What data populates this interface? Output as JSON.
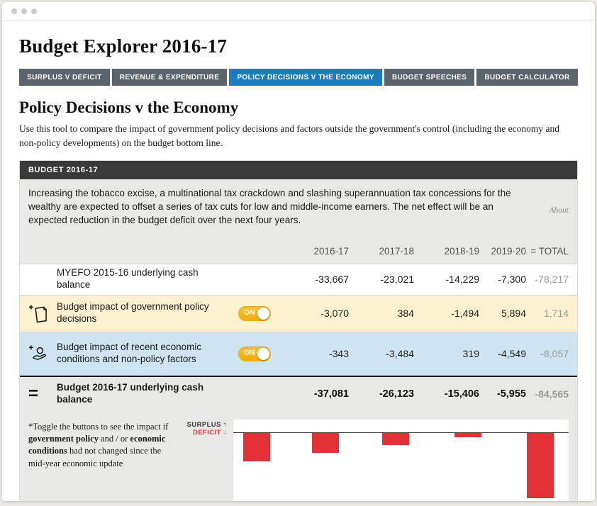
{
  "header": {
    "title": "Budget Explorer 2016-17"
  },
  "tabs": [
    {
      "label": "SURPLUS V DEFICIT",
      "active": false
    },
    {
      "label": "REVENUE & EXPENDITURE",
      "active": false
    },
    {
      "label": "POLICY DECISIONS V THE ECONOMY",
      "active": true
    },
    {
      "label": "BUDGET SPEECHES",
      "active": false
    },
    {
      "label": "BUDGET CALCULATOR",
      "active": false
    }
  ],
  "section": {
    "title": "Policy Decisions v the Economy",
    "description": "Use this tool to compare the impact of government policy decisions and factors outside the government's control (including the economy and non-policy developments) on the budget bottom line."
  },
  "panel": {
    "header": "BUDGET 2016-17",
    "summary": "Increasing the tobacco excise, a multinational tax crackdown and slashing superannuation tax concessions for the wealthy are expected to offset a series of tax cuts for low and middle-income earners. The net effect will be an expected reduction in the budget deficit over the next four years.",
    "about_label": "About"
  },
  "table": {
    "columns": [
      "2016-17",
      "2017-18",
      "2018-19",
      "2019-20",
      "= TOTAL"
    ],
    "rows": [
      {
        "label": "MYEFO 2015-16 underlying cash balance",
        "values": [
          "-33,667",
          "-23,021",
          "-14,229",
          "-7,300"
        ],
        "total": "-78,217"
      },
      {
        "label": "Budget impact of government policy decisions",
        "toggle": "ON",
        "values": [
          "-3,070",
          "384",
          "-1,494",
          "5,894"
        ],
        "total": "1,714"
      },
      {
        "label": "Budget impact of recent economic conditions and non-policy factors",
        "toggle": "ON",
        "values": [
          "-343",
          "-3,484",
          "319",
          "-4,549"
        ],
        "total": "-8,057"
      },
      {
        "label": "Budget 2016-17 underlying cash balance",
        "equals": "=",
        "values": [
          "-37,081",
          "-26,123",
          "-15,406",
          "-5,955"
        ],
        "total": "-84,565"
      }
    ]
  },
  "footer": {
    "footnote": {
      "p1": "*Toggle the buttons to see the impact if ",
      "b1": "government policy",
      "p2": " and / or ",
      "b2": "economic conditions",
      "p3": " had not changed since the mid-year economic update"
    },
    "surplus_label": "SURPLUS ↑",
    "deficit_label": "DEFICIT ↓"
  },
  "chart_data": {
    "type": "bar",
    "categories": [
      "2016-17",
      "2017-18",
      "2018-19",
      "2019-20",
      "TOTAL"
    ],
    "values": [
      -37081,
      -26123,
      -15406,
      -5955,
      -84565
    ],
    "title": "Budget 2016-17 underlying cash balance ($m)",
    "xlabel": "",
    "ylabel": "",
    "ylim": [
      -90000,
      10000
    ],
    "bar_color": "#e23237",
    "grid": false,
    "legend": "none"
  },
  "colors": {
    "accent_blue": "#1a7dc0",
    "toggle_gold": "#f2a705",
    "bar_red": "#e23237"
  }
}
